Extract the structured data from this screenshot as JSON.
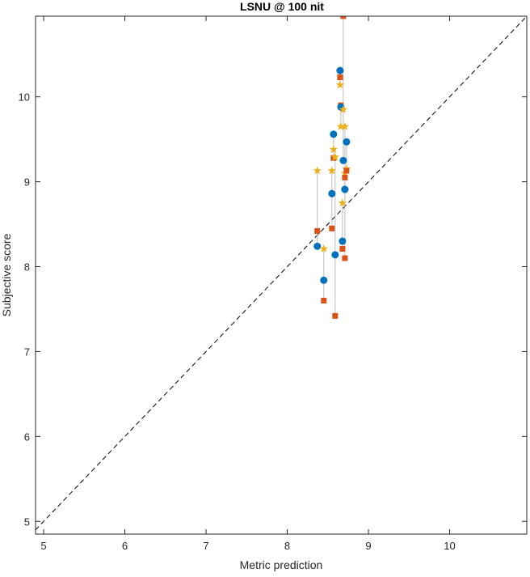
{
  "chart_data": {
    "type": "scatter",
    "title": "LSNU @ 100 nit",
    "xlabel": "Metric prediction",
    "ylabel": "Subjective score",
    "xlim": [
      4.9,
      10.95
    ],
    "ylim": [
      4.85,
      10.95
    ],
    "xticks": [
      5,
      6,
      7,
      8,
      9,
      10
    ],
    "yticks": [
      5,
      6,
      7,
      8,
      9,
      10
    ],
    "grid": false,
    "legend": "none",
    "reference_line": {
      "style": "dashed",
      "from": [
        4.9,
        4.9
      ],
      "to": [
        10.95,
        10.95
      ]
    },
    "colors": {
      "circle": "#0072BD",
      "square": "#D95319",
      "star": "#EDB120",
      "connector": "#BDBDBD",
      "reference": "#000000"
    },
    "points": [
      {
        "x": 8.37,
        "circle": 8.24,
        "square": 8.42,
        "star": 9.13
      },
      {
        "x": 8.45,
        "circle": 7.84,
        "square": 7.6,
        "star": 8.21
      },
      {
        "x": 8.55,
        "circle": 8.86,
        "square": 8.45,
        "star": 9.13
      },
      {
        "x": 8.57,
        "circle": 9.56,
        "square": 9.28,
        "star": 9.38
      },
      {
        "x": 8.59,
        "circle": 8.14,
        "square": 7.42,
        "star": 9.29
      },
      {
        "x": 8.65,
        "circle": 10.31,
        "square": 10.23,
        "star": 10.14
      },
      {
        "x": 8.66,
        "circle": 9.88,
        "square": 9.9,
        "star": 9.65
      },
      {
        "x": 8.68,
        "circle": 8.3,
        "square": 8.21,
        "star": 8.75
      },
      {
        "x": 8.69,
        "circle": 9.25,
        "square": 10.95,
        "star": 9.85
      },
      {
        "x": 8.71,
        "circle": 8.91,
        "square": 8.1,
        "star": 9.1
      },
      {
        "x": 8.71,
        "circle": 8.91,
        "square": 9.05,
        "star": 9.65
      },
      {
        "x": 8.73,
        "circle": 9.47,
        "square": 9.13,
        "star": 9.15
      }
    ]
  }
}
